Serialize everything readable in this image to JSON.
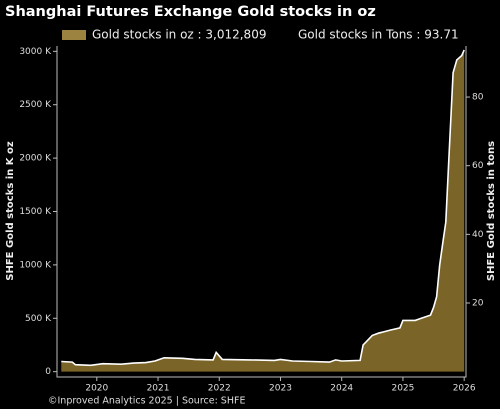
{
  "chart_data": {
    "type": "area",
    "title": "Shanghai Futures Exchange Gold stocks in oz",
    "legend_entries": [
      "Gold stocks in oz : 3,012,809",
      "Gold stocks in Tons : 93.71"
    ],
    "y_label": "SHFE Gold stocks in K oz",
    "y2_label": "SHFE Gold stocks in tons",
    "footer": "©Inproved Analytics 2025 | Source: SHFE",
    "series": [
      {
        "name": "Gold stocks in oz",
        "color": "#7a6428",
        "line_color": "#ffffff",
        "x": [
          2019.42,
          2019.6,
          2019.65,
          2019.9,
          2020.1,
          2020.4,
          2020.6,
          2020.8,
          2020.95,
          2021.1,
          2021.4,
          2021.6,
          2021.9,
          2021.95,
          2022.05,
          2022.5,
          2022.9,
          2023.0,
          2023.2,
          2023.5,
          2023.8,
          2023.9,
          2024.0,
          2024.3,
          2024.35,
          2024.5,
          2024.6,
          2024.8,
          2024.95,
          2025.0,
          2025.2,
          2025.3,
          2025.45,
          2025.5,
          2025.55,
          2025.6,
          2025.65,
          2025.7,
          2025.75,
          2025.82,
          2025.88,
          2025.96,
          2026.0
        ],
        "values": [
          95000,
          90000,
          65000,
          60000,
          75000,
          70000,
          80000,
          85000,
          100000,
          130000,
          125000,
          115000,
          110000,
          180000,
          115000,
          110000,
          105000,
          115000,
          100000,
          95000,
          90000,
          110000,
          100000,
          105000,
          250000,
          340000,
          360000,
          390000,
          410000,
          480000,
          480000,
          500000,
          530000,
          600000,
          700000,
          1000000,
          1200000,
          1400000,
          2000000,
          2800000,
          2920000,
          2960000,
          3012809
        ]
      }
    ],
    "xlim": [
      2019.35,
      2026.03
    ],
    "xticks": [
      2020,
      2021,
      2022,
      2023,
      2024,
      2025,
      2026
    ],
    "ylim": [
      -50000,
      3050000
    ],
    "yticks": [
      {
        "value": 0,
        "label": "0"
      },
      {
        "value": 500000,
        "label": "500 K"
      },
      {
        "value": 1000000,
        "label": "1000 K"
      },
      {
        "value": 1500000,
        "label": "1500 K"
      },
      {
        "value": 2000000,
        "label": "2000 K"
      },
      {
        "value": 2500000,
        "label": "2500 K"
      },
      {
        "value": 3000000,
        "label": "3000 K"
      }
    ],
    "y2lim": [
      -1.555,
      94.87
    ],
    "y2ticks": [
      20,
      40,
      60,
      80
    ]
  }
}
